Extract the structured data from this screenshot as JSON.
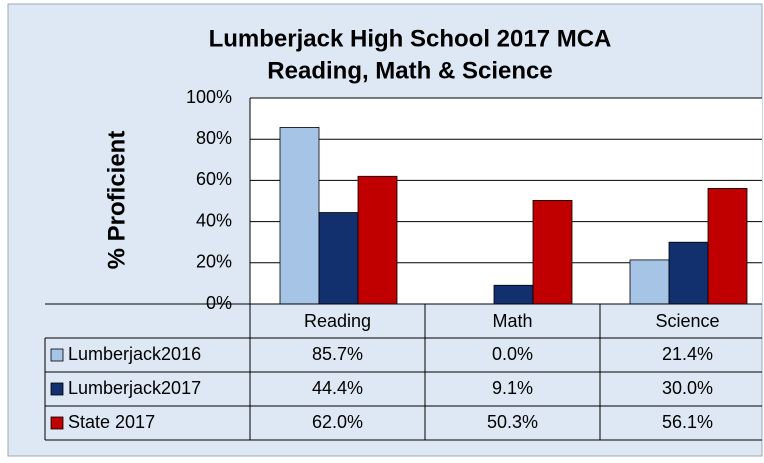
{
  "chart_data": {
    "type": "bar",
    "title": [
      "Lumberjack High School 2017 MCA",
      "Reading, Math & Science"
    ],
    "y_label": "% Proficient",
    "categories": [
      "Reading",
      "Math",
      "Science"
    ],
    "series": [
      {
        "name": "Lumberjack2016",
        "color": "#a6c4e6",
        "values": [
          85.7,
          0.0,
          21.4
        ],
        "value_labels": [
          "85.7%",
          "0.0%",
          "21.4%"
        ]
      },
      {
        "name": "Lumberjack2017",
        "color": "#13306e",
        "values": [
          44.4,
          9.1,
          30.0
        ],
        "value_labels": [
          "44.4%",
          "9.1%",
          "30.0%"
        ]
      },
      {
        "name": "State 2017",
        "color": "#c00000",
        "values": [
          62.0,
          50.3,
          56.1
        ],
        "value_labels": [
          "62.0%",
          "50.3%",
          "56.1%"
        ]
      }
    ],
    "ylim": [
      0,
      100
    ],
    "yticks": [
      {
        "value": 0,
        "label": "0%"
      },
      {
        "value": 20,
        "label": "20%"
      },
      {
        "value": 40,
        "label": "40%"
      },
      {
        "value": 60,
        "label": "60%"
      },
      {
        "value": 80,
        "label": "80%"
      },
      {
        "value": 100,
        "label": "100%"
      }
    ],
    "grid": true
  }
}
